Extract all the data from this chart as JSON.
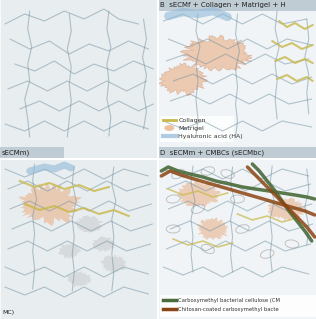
{
  "bg_color": "#e8edf0",
  "panel_A_bg": "#e8edf0",
  "panel_B_bg": "#f0f4f7",
  "panel_C_bg": "#e8edf0",
  "panel_D_bg": "#f0f4f7",
  "header_bg": "#c0ccd4",
  "title_B": "B  sECMf + Collagen + Matrigel + H",
  "title_D": "D  sECMm + CMBCs (sECMbc)",
  "label_secmm": "sECMm)",
  "label_mc": "MC)",
  "collagen_color": "#c8b84a",
  "matrigel_color": "#e8a878",
  "ha_color": "#90b8d8",
  "network_color": "#7090a0",
  "cbc_color": "#4a6b3a",
  "chitosan_color": "#8b4513",
  "gray_blob_color": "#b8b8b8",
  "legend_collagen": "Collagen",
  "legend_matrigel": "Matrigel",
  "legend_ha": "Hyaluronic acid (HA)",
  "legend_cbc": "Carboxymethyl bacterial cellulose (CM",
  "legend_chitosan": "Chitosan-coated carboxymethyl bacte"
}
